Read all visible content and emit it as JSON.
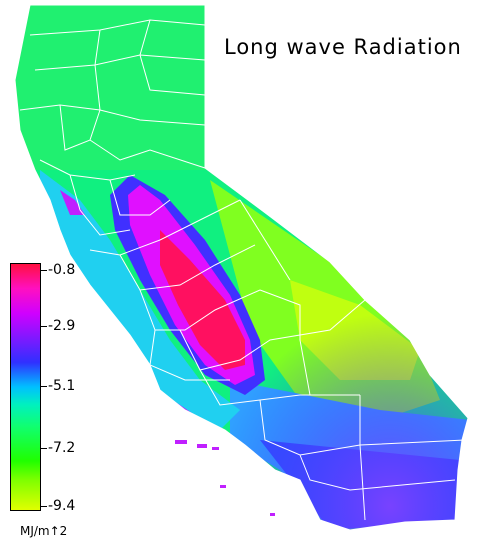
{
  "title": "Long wave Radiation",
  "legend": {
    "ticks": [
      "-0.8",
      "-2.9",
      "-5.1",
      "-7.2",
      "-9.4"
    ],
    "units": "MJ/m↑2"
  },
  "colors": {
    "high": "#ff1040",
    "magenta": "#ff10c0",
    "purple": "#d000ff",
    "blue": "#3030ff",
    "cyan": "#00c0ff",
    "green": "#20ff00",
    "yellow_green": "#e0ff00",
    "county_lines": "#ffffff"
  }
}
